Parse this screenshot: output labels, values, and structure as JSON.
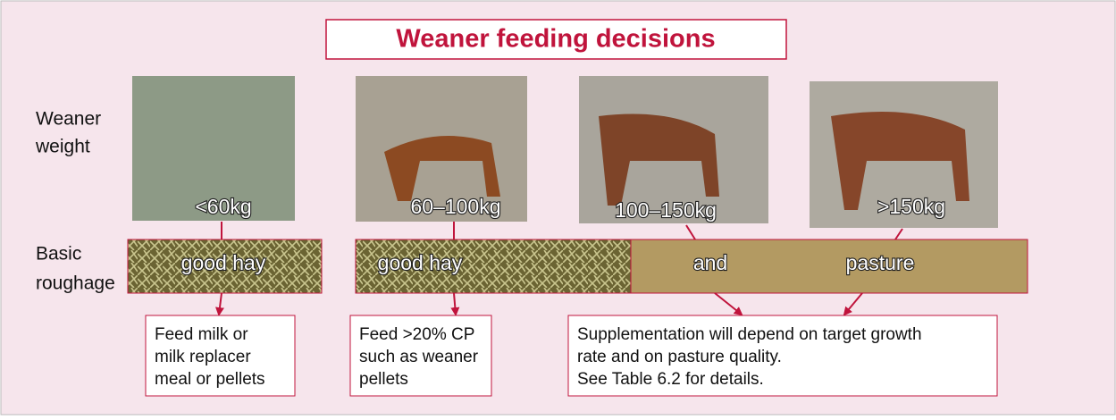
{
  "title": "Weaner feeding decisions",
  "row_labels": [
    [
      "Weaner",
      "weight"
    ],
    [
      "Basic",
      "roughage"
    ]
  ],
  "weights": [
    "<60kg",
    "60–100kg",
    "100–150kg",
    ">150kg"
  ],
  "roughage": [
    "good hay",
    "good hay",
    "and",
    "pasture"
  ],
  "boxes": [
    [
      "Feed milk or",
      "milk replacer",
      "meal or pellets"
    ],
    [
      "Feed >20% CP",
      "such as weaner",
      "pellets"
    ],
    [
      "Supplementation will depend on target growth",
      "rate and on pasture quality.",
      "See Table 6.2 for details."
    ]
  ]
}
